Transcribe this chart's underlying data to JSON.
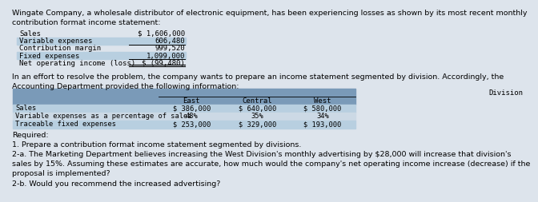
{
  "bg_color": "#dde4ec",
  "header_text": "Wingate Company, a wholesale distributor of electronic equipment, has been experiencing losses as shown by its most recent monthly\ncontribution format income statement:",
  "income_rows": [
    {
      "label": "Sales",
      "value": "$ 1,606,000",
      "shaded": false,
      "line_above": false,
      "dbl_under": false
    },
    {
      "label": "Variable expenses",
      "value": "606,480",
      "shaded": true,
      "line_above": false,
      "dbl_under": false
    },
    {
      "label": "Contribution margin",
      "value": "999,520",
      "shaded": false,
      "line_above": true,
      "dbl_under": false
    },
    {
      "label": "Fixed expenses",
      "value": "1,099,000",
      "shaded": true,
      "line_above": false,
      "dbl_under": false
    },
    {
      "label": "Net operating income (loss)",
      "value": "$ (99,480)",
      "shaded": false,
      "line_above": true,
      "dbl_under": true
    }
  ],
  "middle_text": "In an effort to resolve the problem, the company wants to prepare an income statement segmented by division. Accordingly, the\nAccounting Department provided the following information:",
  "div_cols": [
    "East",
    "Central",
    "West"
  ],
  "div_rows": [
    {
      "label": "Sales",
      "values": [
        "$ 386,000",
        "$ 640,000",
        "$ 580,000"
      ]
    },
    {
      "label": "Variable expenses as a percentage of sales",
      "values": [
        "48%",
        "35%",
        "34%"
      ]
    },
    {
      "label": "Traceable fixed expenses",
      "values": [
        "$ 253,000",
        "$ 329,000",
        "$ 193,000"
      ]
    }
  ],
  "required_text": "Required:\n1. Prepare a contribution format income statement segmented by divisions.\n2-a. The Marketing Department believes increasing the West Division's monthly advertising by $28,000 will increase that division's\nsales by 15%. Assuming these estimates are accurate, how much would the company's net operating income increase (decrease) if the\nproposal is implemented?\n2-b. Would you recommend the increased advertising?",
  "shaded_color": "#b8cfe0",
  "header_blue": "#7a9ab8",
  "alt_row_color": "#ccd9e5",
  "fs_body": 6.8,
  "fs_mono": 6.5,
  "fs_small": 6.3
}
